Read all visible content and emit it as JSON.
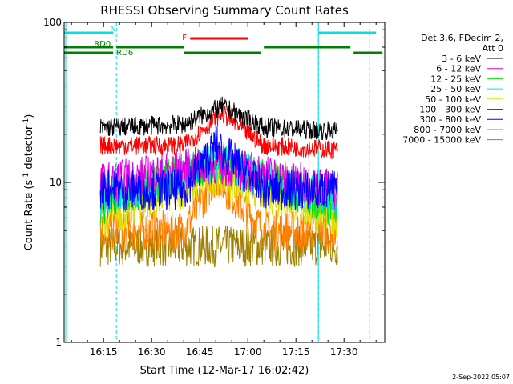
{
  "chart_data": {
    "type": "line",
    "title": "RHESSI Observing Summary Count Rates",
    "xlabel": "Start Time (12-Mar-17 16:02:42)",
    "ylabel": "Count Rate (s",
    "ylabel_sup1": "-1",
    "ylabel_mid": " detector",
    "ylabel_sup2": "-1",
    "ylabel_end": ")",
    "y_scale": "log",
    "ylim": [
      1,
      100
    ],
    "xlim": [
      "16:02:42",
      "17:42:42"
    ],
    "x_ticks": [
      "16:15",
      "16:30",
      "16:45",
      "17:00",
      "17:15",
      "17:30"
    ],
    "y_ticks": [
      "1",
      "10",
      "100"
    ],
    "legend_header": [
      "Det 3,6, FDecim 2,",
      "Att 0"
    ],
    "legend_position": "right",
    "timestamp": "2-Sep-2022 05:07",
    "series": [
      {
        "name": "3 - 6 keV",
        "color": "#000000",
        "values": [
          {
            "x": "16:15",
            "y": 22
          },
          {
            "x": "16:40",
            "y": 23
          },
          {
            "x": "16:52",
            "y": 30
          },
          {
            "x": "17:05",
            "y": 22
          },
          {
            "x": "17:27",
            "y": 21
          }
        ]
      },
      {
        "name": "6 - 12 keV",
        "color": "#e000e0",
        "values": [
          {
            "x": "16:15",
            "y": 10
          },
          {
            "x": "16:50",
            "y": 13
          },
          {
            "x": "17:27",
            "y": 9
          }
        ]
      },
      {
        "name": "12 - 25 keV",
        "color": "#00e000",
        "values": [
          {
            "x": "16:15",
            "y": 7
          },
          {
            "x": "16:50",
            "y": 14
          },
          {
            "x": "17:27",
            "y": 7
          }
        ]
      },
      {
        "name": "25 - 50 keV",
        "color": "#00e0e0",
        "values": [
          {
            "x": "16:15",
            "y": 8
          },
          {
            "x": "16:50",
            "y": 13
          },
          {
            "x": "17:27",
            "y": 8
          }
        ]
      },
      {
        "name": "50 - 100 keV",
        "color": "#e0e000",
        "values": [
          {
            "x": "16:15",
            "y": 6
          },
          {
            "x": "16:50",
            "y": 11
          },
          {
            "x": "17:27",
            "y": 6
          }
        ]
      },
      {
        "name": "100 - 300 keV",
        "color": "#ff0000",
        "values": [
          {
            "x": "16:15",
            "y": 17
          },
          {
            "x": "16:40",
            "y": 17
          },
          {
            "x": "16:52",
            "y": 27
          },
          {
            "x": "17:05",
            "y": 17
          },
          {
            "x": "17:27",
            "y": 16
          }
        ]
      },
      {
        "name": "300 - 800 keV",
        "color": "#0000ff",
        "values": [
          {
            "x": "16:15",
            "y": 9
          },
          {
            "x": "16:40",
            "y": 9
          },
          {
            "x": "16:50",
            "y": 17
          },
          {
            "x": "17:05",
            "y": 9
          },
          {
            "x": "17:27",
            "y": 9
          }
        ]
      },
      {
        "name": "800 - 7000 keV",
        "color": "#ff8000",
        "values": [
          {
            "x": "16:15",
            "y": 5
          },
          {
            "x": "16:40",
            "y": 5
          },
          {
            "x": "16:50",
            "y": 11
          },
          {
            "x": "17:05",
            "y": 5
          },
          {
            "x": "17:27",
            "y": 5
          }
        ]
      },
      {
        "name": "7000 - 15000 keV",
        "color": "#a08000",
        "values": [
          {
            "x": "16:15",
            "y": 4
          },
          {
            "x": "17:27",
            "y": 4
          }
        ]
      }
    ],
    "flags": [
      {
        "name": "N",
        "color": "#00e0e0",
        "label_time": "16:16",
        "segments": [
          [
            "16:02",
            "16:18"
          ],
          [
            "17:22",
            "17:40"
          ]
        ]
      },
      {
        "name": "F",
        "color": "#ff0000",
        "label_time": "16:41",
        "segments": [
          [
            "16:42",
            "17:00"
          ]
        ]
      },
      {
        "name": "RD0",
        "color": "#008000",
        "label_time": "16:12",
        "segments": [
          [
            "16:02",
            "16:18"
          ],
          [
            "16:19",
            "16:40"
          ],
          [
            "17:05",
            "17:32"
          ]
        ]
      },
      {
        "name": "RD6",
        "color": "#008000",
        "label_time": "16:19",
        "segments": [
          [
            "16:02",
            "16:18"
          ],
          [
            "16:40",
            "17:04"
          ],
          [
            "17:33",
            "17:42"
          ]
        ]
      }
    ],
    "night_markers": [
      "16:19",
      "17:22",
      "17:38"
    ]
  }
}
